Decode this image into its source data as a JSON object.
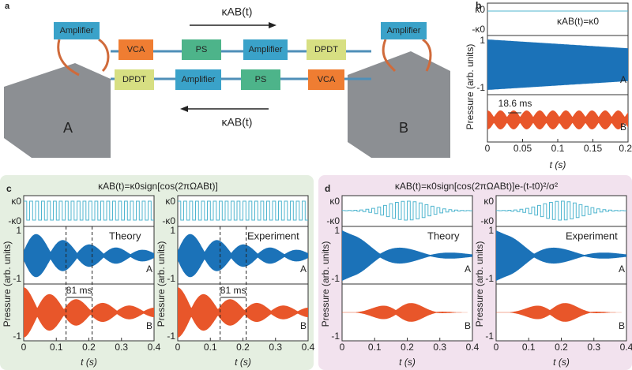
{
  "panel_a": {
    "label": "a",
    "top_arrow": "κAB(t)",
    "bottom_arrow": "κAB(t)",
    "amplifier_left": "Amplifier",
    "amplifier_right": "Amplifier",
    "top_row": [
      "VCA",
      "PS",
      "Amplifier",
      "DPDT"
    ],
    "bottom_row": [
      "DPDT",
      "Amplifier",
      "PS",
      "VCA"
    ],
    "block_left": "A",
    "block_right": "B"
  },
  "panel_b": {
    "label": "b",
    "kappa_pos": "κ0",
    "kappa_neg": "-κ0",
    "equation": "κAB(t)=κ0",
    "y_pos": "1",
    "y_neg": "-1",
    "y_axis": "Pressure (arb. units)",
    "trace_a": "A",
    "trace_b": "B",
    "period": "18.6 ms",
    "x_ticks": [
      "0",
      "0.05",
      "0.1",
      "0.15",
      "0.20"
    ],
    "x_axis": "t (s)"
  },
  "panel_c": {
    "label": "c",
    "title": "κAB(t)=κ0sign[cos(2πΩABt)]",
    "plots": [
      "Theory",
      "Experiment"
    ],
    "kappa_pos": "κ0",
    "kappa_neg": "-κ0",
    "y_pos": "1",
    "y_neg": "-1",
    "y_axis": "Pressure (arb. units)",
    "trace_a": "A",
    "trace_b": "B",
    "period": "81 ms",
    "x_ticks": [
      "0",
      "0.1",
      "0.2",
      "0.3",
      "0.4"
    ],
    "x_axis": "t (s)"
  },
  "panel_d": {
    "label": "d",
    "title": "κAB(t)=κ0sign[cos(2πΩABt)]e-(t-t0)²/σ²",
    "plots": [
      "Theory",
      "Experiment"
    ],
    "kappa_pos": "κ0",
    "kappa_neg": "-κ0",
    "y_pos": "1",
    "y_neg": "-1",
    "y_axis": "Pressure (arb. units)",
    "trace_a": "A",
    "trace_b": "B",
    "x_ticks": [
      "0",
      "0.1",
      "0.2",
      "0.3",
      "0.4"
    ],
    "x_axis": "t (s)"
  }
}
